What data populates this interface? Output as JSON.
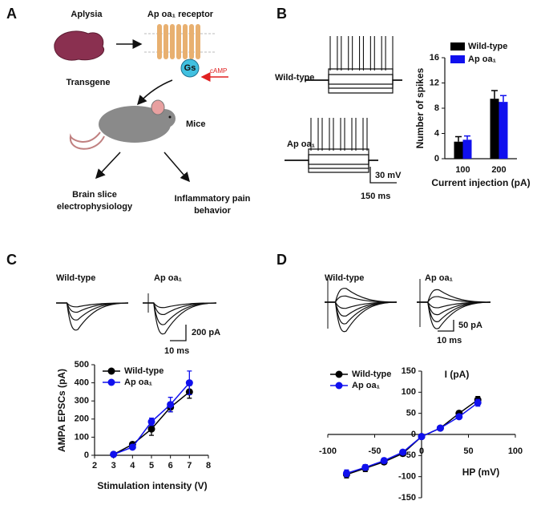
{
  "panel_a": {
    "label": "A",
    "aplysia": "Aplysia",
    "receptor": "Ap oa₁ receptor",
    "gs": "Gs",
    "camp": "cAMP",
    "transgene": "Transgene",
    "mice": "Mice",
    "outcome_1": [
      "Brain slice",
      "electrophysiology"
    ],
    "outcome_2": [
      "Inflammatory pain",
      "behavior"
    ]
  },
  "panel_b": {
    "label": "B",
    "trace_labels": [
      "Wild-type",
      "Ap oa₁"
    ],
    "scale_y": "30 mV",
    "scale_x": "150 ms"
  },
  "panel_c": {
    "label": "C",
    "trace_labels": [
      "Wild-type",
      "Ap oa₁"
    ],
    "scale_y": "200 pA",
    "scale_x": "10 ms"
  },
  "panel_d": {
    "label": "D",
    "trace_labels": [
      "Wild-type",
      "Ap oa₁"
    ],
    "scale_y": "50 pA",
    "scale_x": "10 ms"
  },
  "chart_data": [
    {
      "type": "bar",
      "xlabel": "Current injection (pA)",
      "ylabel": "Number of spikes",
      "categories": [
        "100",
        "200"
      ],
      "series": [
        {
          "name": "Wild-type",
          "color": "#000000",
          "values": [
            2.7,
            9.5
          ],
          "errors": [
            0.8,
            1.3
          ]
        },
        {
          "name": "Ap oa₁",
          "color": "#1010ee",
          "values": [
            3.0,
            9.0
          ],
          "errors": [
            0.6,
            1.0
          ]
        }
      ],
      "ylim": [
        0,
        16
      ],
      "yticks": [
        0,
        4,
        8,
        12,
        16
      ],
      "legend": "top right"
    },
    {
      "type": "line",
      "xlabel": "Stimulation intensity (V)",
      "ylabel": "AMPA EPSCs (pA)",
      "x": [
        3,
        4,
        5,
        6,
        7
      ],
      "series": [
        {
          "name": "Wild-type",
          "color": "#000000",
          "values": [
            5,
            60,
            145,
            265,
            350
          ],
          "errors": [
            5,
            10,
            35,
            25,
            35
          ]
        },
        {
          "name": "Ap oa₁",
          "color": "#1010ee",
          "values": [
            5,
            45,
            185,
            280,
            400
          ],
          "errors": [
            5,
            10,
            20,
            40,
            65
          ]
        }
      ],
      "xlim": [
        2,
        8
      ],
      "xticks": [
        2,
        3,
        4,
        5,
        6,
        7,
        8
      ],
      "ylim": [
        0,
        500
      ],
      "yticks": [
        0,
        100,
        200,
        300,
        400,
        500
      ],
      "legend": "upper left"
    },
    {
      "type": "line",
      "xlabel": "HP (mV)",
      "ylabel": "I (pA)",
      "x": [
        -80,
        -60,
        -40,
        -20,
        0,
        20,
        40,
        60
      ],
      "series": [
        {
          "name": "Wild-type",
          "color": "#000000",
          "values": [
            -95,
            -80,
            -65,
            -45,
            -5,
            15,
            50,
            82
          ],
          "errors": [
            8,
            8,
            6,
            6,
            3,
            4,
            6,
            8
          ]
        },
        {
          "name": "Ap oa₁",
          "color": "#1010ee",
          "values": [
            -92,
            -78,
            -62,
            -42,
            -5,
            15,
            42,
            75
          ],
          "errors": [
            8,
            6,
            6,
            5,
            3,
            4,
            5,
            8
          ]
        }
      ],
      "xlim": [
        -100,
        100
      ],
      "xticks": [
        -100,
        -50,
        0,
        50,
        100
      ],
      "ylim": [
        -150,
        150
      ],
      "yticks": [
        -150,
        -100,
        -50,
        0,
        50,
        100,
        150
      ],
      "axes_through_origin": true,
      "legend": "upper left"
    }
  ]
}
